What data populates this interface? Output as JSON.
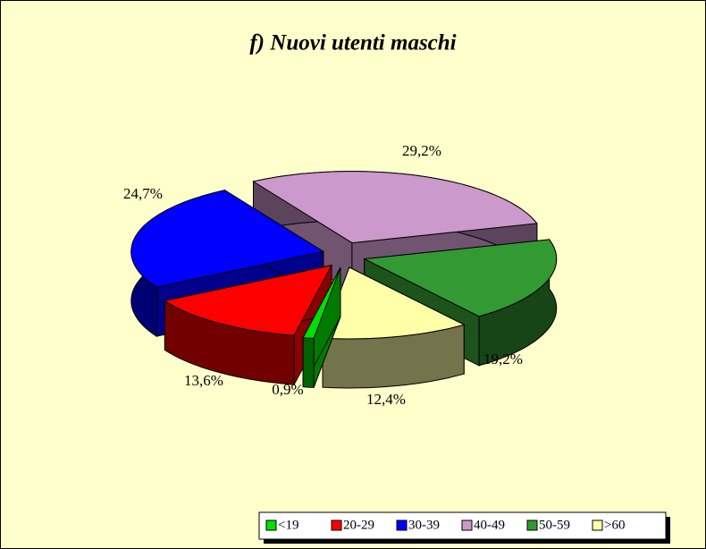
{
  "chart_data": {
    "type": "pie3d",
    "title": "f) Nuovi utenti maschi",
    "categories": [
      "<19",
      "20-29",
      "30-39",
      "40-49",
      "50-59",
      ">60"
    ],
    "values": [
      0.9,
      13.6,
      24.7,
      29.2,
      19.2,
      12.4
    ],
    "value_labels": [
      "0,9%",
      "13,6%",
      "24,7%",
      "29,2%",
      "19,2%",
      "12,4%"
    ],
    "colors": [
      "#00e000",
      "#ff0000",
      "#0000ff",
      "#cc99cc",
      "#339933",
      "#ffffa8"
    ],
    "legend": "bottom-right"
  }
}
